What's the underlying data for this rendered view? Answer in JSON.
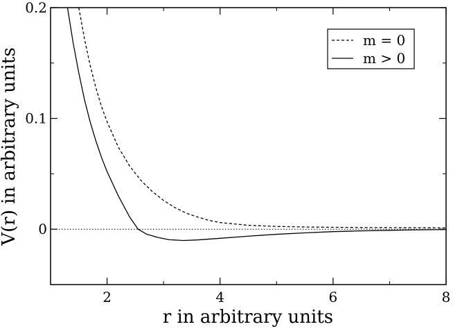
{
  "chart_data": {
    "type": "line",
    "xlabel": "r in arbitrary units",
    "ylabel": "V(r) in arbitrary units",
    "xlim": [
      1,
      8
    ],
    "ylim": [
      -0.05,
      0.2
    ],
    "xticks": [
      2,
      4,
      6,
      8
    ],
    "xtick_labels": [
      "2",
      "4",
      "6",
      "8"
    ],
    "yticks": [
      0,
      0.1,
      0.2
    ],
    "ytick_labels": [
      "0",
      "0.1",
      "0.2"
    ],
    "grid": false,
    "legend_position": "top-right",
    "reference_line": {
      "y": 0,
      "style": "dotted"
    },
    "series": [
      {
        "name": "m = 0",
        "style": "dashed",
        "x": [
          1.5,
          1.6,
          1.7,
          1.8,
          1.9,
          2.0,
          2.2,
          2.4,
          2.6,
          2.8,
          3.0,
          3.2,
          3.4,
          3.6,
          3.8,
          4.0,
          4.5,
          5.0,
          5.5,
          6.0,
          6.5,
          7.0,
          7.5,
          8.0
        ],
        "y": [
          0.2,
          0.172,
          0.148,
          0.128,
          0.111,
          0.097,
          0.074,
          0.057,
          0.044,
          0.034,
          0.026,
          0.0195,
          0.0145,
          0.011,
          0.008,
          0.006,
          0.0035,
          0.0025,
          0.002,
          0.0017,
          0.0015,
          0.0014,
          0.0013,
          0.0012
        ]
      },
      {
        "name": "m > 0",
        "style": "solid",
        "x": [
          1.3,
          1.4,
          1.5,
          1.6,
          1.7,
          1.8,
          1.9,
          2.0,
          2.2,
          2.4,
          2.55,
          2.7,
          2.9,
          3.1,
          3.35,
          3.6,
          4.0,
          4.5,
          5.0,
          5.5,
          6.0,
          6.5,
          7.0,
          7.5,
          8.0
        ],
        "y": [
          0.2,
          0.168,
          0.141,
          0.117,
          0.097,
          0.08,
          0.065,
          0.052,
          0.03,
          0.011,
          0.0,
          -0.0045,
          -0.0075,
          -0.0095,
          -0.0102,
          -0.0097,
          -0.0082,
          -0.0063,
          -0.0046,
          -0.0033,
          -0.0022,
          -0.0015,
          -0.001,
          -0.0006,
          -0.0003
        ]
      }
    ]
  }
}
